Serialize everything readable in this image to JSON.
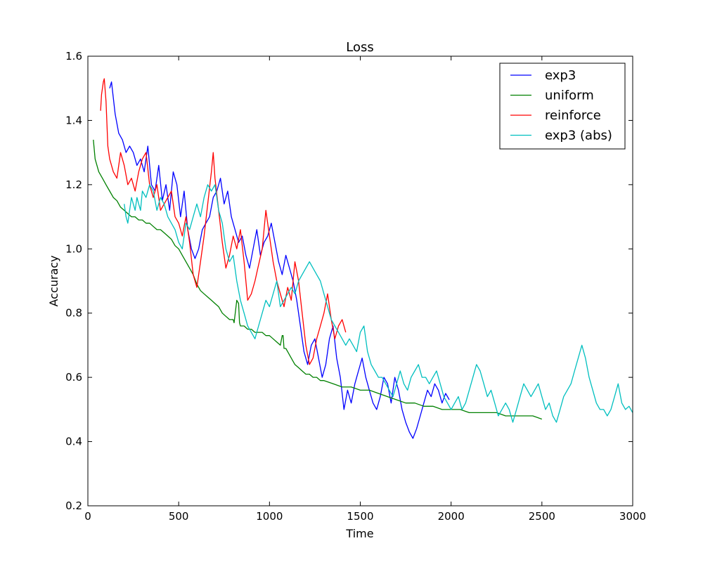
{
  "chart_data": {
    "type": "line",
    "title": "Loss",
    "xlabel": "Time",
    "ylabel": "Accuracy",
    "xlim": [
      0,
      3000
    ],
    "ylim": [
      0.2,
      1.6
    ],
    "xticks": [
      0,
      500,
      1000,
      1500,
      2000,
      2500,
      3000
    ],
    "yticks": [
      0.2,
      0.4,
      0.6,
      0.8,
      1.0,
      1.2,
      1.4,
      1.6
    ],
    "ytick_labels": [
      "0.2",
      "0.4",
      "0.6",
      "0.8",
      "1.0",
      "1.2",
      "1.4",
      "1.6"
    ],
    "grid": false,
    "legend_position": "top-right",
    "series": [
      {
        "name": "exp3",
        "color": "#0000ff",
        "x": [
          120,
          130,
          150,
          170,
          190,
          210,
          230,
          250,
          270,
          290,
          310,
          330,
          350,
          370,
          390,
          410,
          430,
          450,
          470,
          490,
          510,
          530,
          550,
          570,
          590,
          610,
          630,
          650,
          670,
          690,
          710,
          730,
          750,
          770,
          790,
          810,
          830,
          850,
          870,
          890,
          910,
          930,
          950,
          970,
          990,
          1010,
          1030,
          1050,
          1070,
          1090,
          1110,
          1130,
          1150,
          1170,
          1190,
          1210,
          1230,
          1250,
          1270,
          1290,
          1310,
          1330,
          1350,
          1370,
          1390,
          1410,
          1430,
          1450,
          1470,
          1490,
          1510,
          1530,
          1550,
          1570,
          1590,
          1610,
          1630,
          1650,
          1670,
          1690,
          1710,
          1730,
          1750,
          1770,
          1790,
          1810,
          1830,
          1850,
          1870,
          1890,
          1910,
          1930,
          1950,
          1970,
          1990
        ],
        "y": [
          1.5,
          1.52,
          1.42,
          1.36,
          1.34,
          1.3,
          1.32,
          1.3,
          1.26,
          1.28,
          1.24,
          1.32,
          1.2,
          1.18,
          1.26,
          1.15,
          1.2,
          1.12,
          1.24,
          1.2,
          1.1,
          1.18,
          1.06,
          1.0,
          0.97,
          1.0,
          1.06,
          1.08,
          1.1,
          1.16,
          1.18,
          1.22,
          1.14,
          1.18,
          1.1,
          1.06,
          1.02,
          1.04,
          0.98,
          0.94,
          1.0,
          1.06,
          0.98,
          1.02,
          1.04,
          1.08,
          1.02,
          0.96,
          0.92,
          0.98,
          0.94,
          0.9,
          0.84,
          0.76,
          0.68,
          0.64,
          0.7,
          0.72,
          0.66,
          0.6,
          0.64,
          0.72,
          0.76,
          0.66,
          0.6,
          0.5,
          0.56,
          0.52,
          0.58,
          0.62,
          0.66,
          0.6,
          0.56,
          0.52,
          0.5,
          0.54,
          0.6,
          0.58,
          0.52,
          0.6,
          0.56,
          0.5,
          0.46,
          0.43,
          0.41,
          0.44,
          0.48,
          0.52,
          0.56,
          0.54,
          0.58,
          0.56,
          0.52,
          0.55,
          0.53
        ]
      },
      {
        "name": "uniform",
        "color": "#008000",
        "x": [
          30,
          40,
          60,
          80,
          100,
          120,
          140,
          160,
          180,
          200,
          220,
          240,
          260,
          280,
          300,
          320,
          340,
          360,
          380,
          400,
          420,
          440,
          460,
          480,
          500,
          520,
          540,
          560,
          580,
          600,
          620,
          640,
          660,
          680,
          700,
          720,
          740,
          760,
          780,
          800,
          805,
          820,
          830,
          835,
          840,
          860,
          880,
          900,
          920,
          940,
          960,
          980,
          1000,
          1020,
          1040,
          1060,
          1070,
          1075,
          1080,
          1090,
          1100,
          1120,
          1140,
          1160,
          1180,
          1200,
          1220,
          1240,
          1260,
          1280,
          1300,
          1350,
          1400,
          1450,
          1500,
          1550,
          1600,
          1650,
          1700,
          1750,
          1800,
          1850,
          1900,
          1950,
          2000,
          2050,
          2100,
          2150,
          2200,
          2250,
          2300,
          2350,
          2400,
          2450,
          2500
        ],
        "y": [
          1.34,
          1.28,
          1.24,
          1.22,
          1.2,
          1.18,
          1.16,
          1.15,
          1.13,
          1.12,
          1.11,
          1.1,
          1.1,
          1.09,
          1.09,
          1.08,
          1.08,
          1.07,
          1.06,
          1.06,
          1.05,
          1.04,
          1.03,
          1.01,
          1.0,
          0.98,
          0.96,
          0.94,
          0.92,
          0.89,
          0.87,
          0.86,
          0.85,
          0.84,
          0.83,
          0.82,
          0.8,
          0.79,
          0.78,
          0.78,
          0.77,
          0.84,
          0.83,
          0.77,
          0.76,
          0.76,
          0.75,
          0.75,
          0.74,
          0.74,
          0.74,
          0.73,
          0.73,
          0.72,
          0.71,
          0.7,
          0.73,
          0.73,
          0.69,
          0.69,
          0.68,
          0.66,
          0.64,
          0.63,
          0.62,
          0.61,
          0.61,
          0.6,
          0.6,
          0.59,
          0.59,
          0.58,
          0.57,
          0.57,
          0.56,
          0.56,
          0.55,
          0.54,
          0.53,
          0.52,
          0.52,
          0.51,
          0.51,
          0.5,
          0.5,
          0.5,
          0.49,
          0.49,
          0.49,
          0.49,
          0.48,
          0.48,
          0.48,
          0.48,
          0.47
        ]
      },
      {
        "name": "reinforce",
        "color": "#ff0000",
        "x": [
          70,
          75,
          80,
          85,
          90,
          100,
          110,
          120,
          140,
          160,
          180,
          200,
          220,
          240,
          260,
          280,
          300,
          320,
          340,
          360,
          380,
          400,
          420,
          440,
          460,
          480,
          500,
          520,
          540,
          560,
          580,
          600,
          620,
          640,
          660,
          680,
          690,
          700,
          720,
          740,
          760,
          780,
          800,
          820,
          840,
          860,
          880,
          900,
          920,
          940,
          960,
          980,
          1000,
          1020,
          1040,
          1060,
          1080,
          1100,
          1120,
          1140,
          1160,
          1180,
          1200,
          1220,
          1240,
          1260,
          1280,
          1300,
          1320,
          1340,
          1360,
          1380,
          1400,
          1420
        ],
        "y": [
          1.43,
          1.48,
          1.5,
          1.52,
          1.53,
          1.46,
          1.32,
          1.28,
          1.24,
          1.22,
          1.3,
          1.26,
          1.2,
          1.22,
          1.18,
          1.24,
          1.28,
          1.3,
          1.2,
          1.16,
          1.2,
          1.12,
          1.14,
          1.16,
          1.18,
          1.1,
          1.08,
          1.04,
          1.1,
          1.02,
          0.92,
          0.88,
          0.96,
          1.04,
          1.14,
          1.24,
          1.3,
          1.22,
          1.12,
          1.02,
          0.94,
          0.98,
          1.04,
          1.0,
          1.06,
          0.96,
          0.84,
          0.86,
          0.9,
          0.95,
          1.0,
          1.12,
          1.04,
          0.96,
          0.9,
          0.86,
          0.82,
          0.88,
          0.84,
          0.96,
          0.9,
          0.8,
          0.7,
          0.64,
          0.66,
          0.72,
          0.76,
          0.8,
          0.86,
          0.78,
          0.72,
          0.76,
          0.78,
          0.74
        ]
      },
      {
        "name": "exp3 (abs)",
        "color": "#00bfbf",
        "x": [
          200,
          210,
          220,
          230,
          240,
          250,
          260,
          270,
          280,
          290,
          300,
          320,
          340,
          360,
          380,
          400,
          420,
          440,
          460,
          480,
          500,
          520,
          540,
          560,
          580,
          600,
          620,
          640,
          660,
          680,
          700,
          720,
          740,
          760,
          780,
          800,
          820,
          840,
          860,
          880,
          900,
          920,
          940,
          960,
          980,
          1000,
          1020,
          1040,
          1060,
          1080,
          1100,
          1120,
          1140,
          1160,
          1180,
          1200,
          1220,
          1240,
          1260,
          1280,
          1300,
          1320,
          1340,
          1360,
          1380,
          1400,
          1420,
          1440,
          1460,
          1480,
          1500,
          1520,
          1540,
          1560,
          1580,
          1600,
          1620,
          1640,
          1660,
          1680,
          1700,
          1720,
          1740,
          1760,
          1780,
          1800,
          1820,
          1840,
          1860,
          1880,
          1900,
          1920,
          1940,
          1960,
          1980,
          2000,
          2020,
          2040,
          2060,
          2080,
          2100,
          2120,
          2140,
          2160,
          2180,
          2200,
          2220,
          2240,
          2260,
          2280,
          2300,
          2320,
          2340,
          2360,
          2380,
          2400,
          2420,
          2440,
          2460,
          2480,
          2500,
          2520,
          2540,
          2560,
          2580,
          2600,
          2620,
          2640,
          2660,
          2680,
          2700,
          2720,
          2740,
          2760,
          2780,
          2800,
          2820,
          2840,
          2860,
          2880,
          2900,
          2920,
          2940,
          2960,
          2980,
          3000
        ],
        "y": [
          1.14,
          1.1,
          1.08,
          1.12,
          1.16,
          1.14,
          1.12,
          1.16,
          1.14,
          1.12,
          1.18,
          1.16,
          1.2,
          1.18,
          1.12,
          1.16,
          1.14,
          1.1,
          1.08,
          1.06,
          1.02,
          1.0,
          1.08,
          1.06,
          1.1,
          1.14,
          1.1,
          1.16,
          1.2,
          1.18,
          1.2,
          1.12,
          1.08,
          1.0,
          0.96,
          0.98,
          0.9,
          0.84,
          0.8,
          0.76,
          0.74,
          0.72,
          0.76,
          0.8,
          0.84,
          0.82,
          0.86,
          0.9,
          0.82,
          0.84,
          0.86,
          0.88,
          0.86,
          0.9,
          0.92,
          0.94,
          0.96,
          0.94,
          0.92,
          0.9,
          0.86,
          0.82,
          0.78,
          0.76,
          0.74,
          0.72,
          0.7,
          0.72,
          0.7,
          0.68,
          0.74,
          0.76,
          0.68,
          0.64,
          0.62,
          0.6,
          0.6,
          0.58,
          0.56,
          0.54,
          0.58,
          0.62,
          0.58,
          0.56,
          0.6,
          0.62,
          0.64,
          0.6,
          0.6,
          0.58,
          0.6,
          0.62,
          0.58,
          0.54,
          0.52,
          0.5,
          0.52,
          0.54,
          0.5,
          0.52,
          0.56,
          0.6,
          0.64,
          0.62,
          0.58,
          0.54,
          0.56,
          0.52,
          0.48,
          0.5,
          0.52,
          0.5,
          0.46,
          0.5,
          0.54,
          0.58,
          0.56,
          0.54,
          0.56,
          0.58,
          0.54,
          0.5,
          0.52,
          0.48,
          0.46,
          0.5,
          0.54,
          0.56,
          0.58,
          0.62,
          0.66,
          0.7,
          0.66,
          0.6,
          0.56,
          0.52,
          0.5,
          0.5,
          0.48,
          0.5,
          0.54,
          0.58,
          0.52,
          0.5,
          0.51,
          0.49
        ]
      }
    ]
  }
}
